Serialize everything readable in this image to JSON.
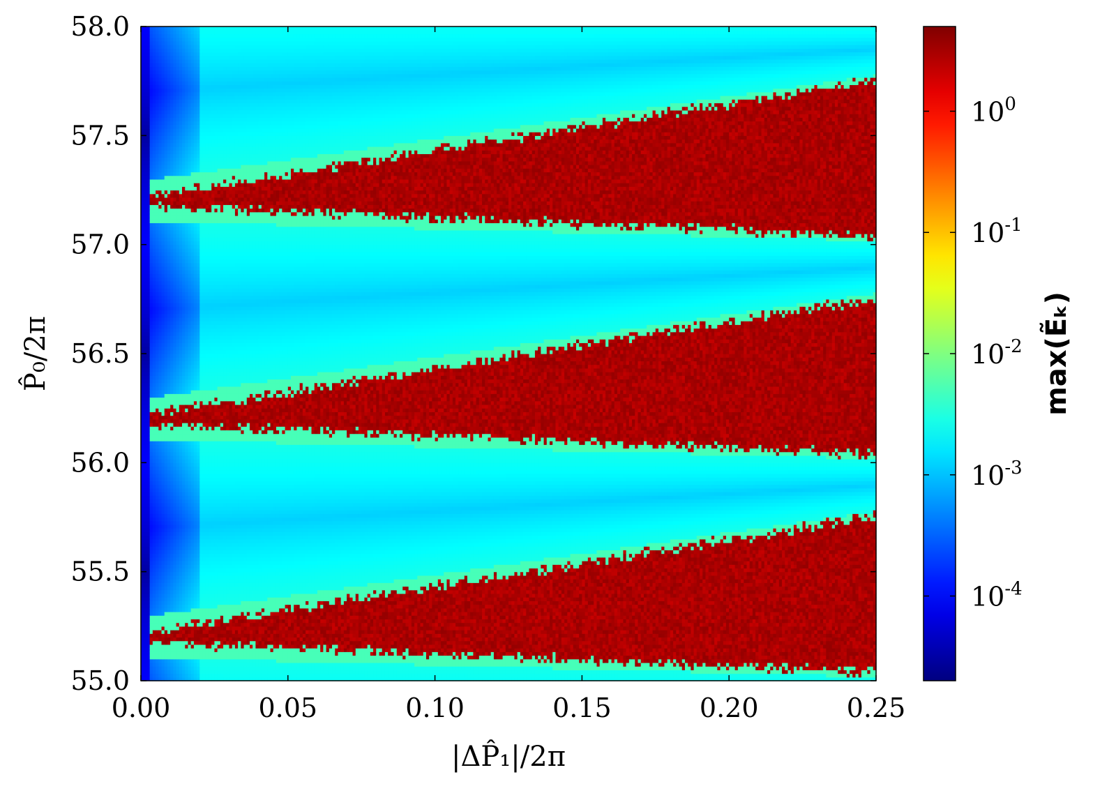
{
  "chart_data": {
    "type": "heatmap",
    "title": "",
    "xlabel": "|ΔP̂₁|/2π",
    "ylabel": "P̂₀/2π",
    "colorbar_label": "max(Ẽₖ)",
    "xlim": [
      0.0,
      0.25
    ],
    "ylim": [
      55.0,
      58.0
    ],
    "x_ticks": [
      "0.00",
      "0.05",
      "0.10",
      "0.15",
      "0.20",
      "0.25"
    ],
    "y_ticks": [
      "55.0",
      "55.5",
      "56.0",
      "56.5",
      "57.0",
      "57.5",
      "58.0"
    ],
    "colorbar": {
      "scale": "log",
      "range": [
        2e-05,
        5.0
      ],
      "colormap": "jet",
      "ticks": [
        {
          "value": 0.0001,
          "mantissa": "10",
          "exp": "-4"
        },
        {
          "value": 0.001,
          "mantissa": "10",
          "exp": "-3"
        },
        {
          "value": 0.01,
          "mantissa": "10",
          "exp": "-2"
        },
        {
          "value": 0.1,
          "mantissa": "10",
          "exp": "-1"
        },
        {
          "value": 1.0,
          "mantissa": "10",
          "exp": "0"
        }
      ]
    },
    "grid": false,
    "regions": {
      "chaotic_value": 3.0,
      "stable_band_value": 0.0015,
      "near_zero_value": 5e-05,
      "band_period": 1.0,
      "tongue_slope_per_unit_x": 2.2
    }
  },
  "colors": {
    "axis": "#000000",
    "background": "#ffffff"
  }
}
